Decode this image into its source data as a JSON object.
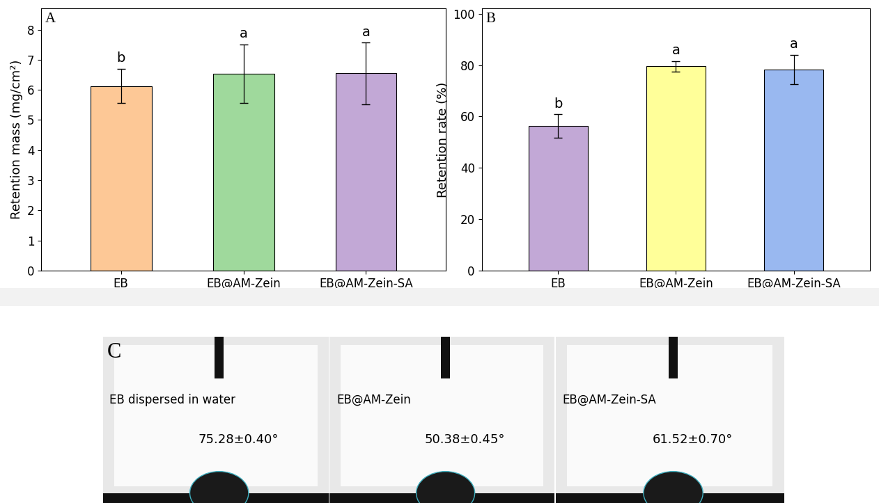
{
  "chart_data": [
    {
      "type": "bar",
      "title": "A",
      "categories": [
        "EB",
        "EB@AM-Zein",
        "EB@AM-Zein-SA"
      ],
      "values": [
        6.13,
        6.54,
        6.55
      ],
      "errors": [
        0.57,
        0.97,
        1.02
      ],
      "annotations": [
        "b",
        "a",
        "a"
      ],
      "colors": [
        "#FDC896",
        "#9FD99C",
        "#C2A8D6"
      ],
      "y_label": "Retention mass (mg/cm²)",
      "ylim": [
        0,
        8.7
      ],
      "yticks": [
        0,
        1,
        2,
        3,
        4,
        5,
        6,
        7,
        8
      ]
    },
    {
      "type": "bar",
      "title": "B",
      "categories": [
        "EB",
        "EB@AM-Zein",
        "EB@AM-Zein-SA"
      ],
      "values": [
        56.2,
        79.5,
        78.2
      ],
      "errors": [
        4.6,
        2.0,
        5.7
      ],
      "annotations": [
        "b",
        "a",
        "a"
      ],
      "colors": [
        "#C2A8D6",
        "#FFFF99",
        "#99B8F0"
      ],
      "y_label": "Retention rate (%)",
      "ylim": [
        0,
        102
      ],
      "yticks": [
        0,
        20,
        40,
        60,
        80,
        100
      ]
    }
  ],
  "contact_angle_panel": {
    "title": "C",
    "images": [
      {
        "label": "EB dispersed in water",
        "angle": "75.28±0.40°"
      },
      {
        "label": "EB@AM-Zein",
        "angle": "50.38±0.45°"
      },
      {
        "label": "EB@AM-Zein-SA",
        "angle": "61.52±0.70°"
      }
    ]
  }
}
